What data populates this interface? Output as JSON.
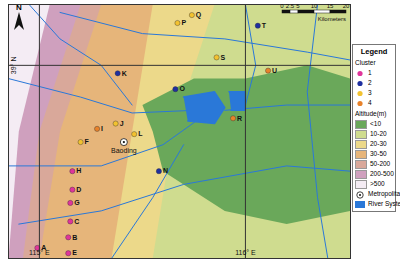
{
  "chart_data": {
    "type": "map",
    "xlim": [
      114.85,
      116.51
    ],
    "ylim": [
      38.27,
      39.23
    ],
    "xticks": [
      {
        "value": 115,
        "label": "115° E"
      },
      {
        "value": 116,
        "label": "116° E"
      }
    ],
    "yticks": [
      {
        "value": 39,
        "label": "39° N"
      }
    ],
    "legend": "right",
    "legend_title": "Legend",
    "cluster_title": "Cluster",
    "clusters": [
      {
        "name": "1",
        "color": "#e0359b"
      },
      {
        "name": "2",
        "color": "#1f2fa0"
      },
      {
        "name": "3",
        "color": "#f2c230"
      },
      {
        "name": "4",
        "color": "#e8822a"
      }
    ],
    "altitude_title": "Altitude(m)",
    "altitude_zones": [
      {
        "label": "<10",
        "color": "#6aa85a",
        "polygon": [
          [
            115.5,
            38.85
          ],
          [
            115.75,
            38.95
          ],
          [
            116.0,
            38.95
          ],
          [
            116.3,
            39.0
          ],
          [
            116.51,
            38.95
          ],
          [
            116.51,
            38.45
          ],
          [
            116.2,
            38.4
          ],
          [
            115.9,
            38.45
          ],
          [
            115.6,
            38.6
          ],
          [
            115.55,
            38.75
          ]
        ]
      },
      {
        "label": "10-20",
        "color": "#cfdc8f",
        "polygon": [
          [
            115.85,
            39.23
          ],
          [
            115.65,
            38.75
          ],
          [
            115.55,
            38.27
          ],
          [
            116.51,
            38.27
          ],
          [
            116.51,
            39.23
          ]
        ]
      },
      {
        "label": "20-30",
        "color": "#ecd98a",
        "polygon": [
          [
            115.55,
            39.23
          ],
          [
            115.45,
            38.75
          ],
          [
            115.35,
            38.27
          ],
          [
            116.51,
            38.27
          ],
          [
            116.51,
            39.23
          ]
        ]
      },
      {
        "label": "30-50",
        "color": "#e6b57a",
        "polygon": [
          [
            115.3,
            39.23
          ],
          [
            115.1,
            38.75
          ],
          [
            115.0,
            38.27
          ],
          [
            116.51,
            38.27
          ],
          [
            116.51,
            39.23
          ]
        ]
      },
      {
        "label": "50-200",
        "color": "#d9a89a",
        "polygon": [
          [
            115.2,
            39.23
          ],
          [
            115.0,
            38.75
          ],
          [
            114.92,
            38.27
          ],
          [
            116.51,
            38.27
          ],
          [
            116.51,
            39.23
          ]
        ]
      },
      {
        "label": "200-500",
        "color": "#cfa0be",
        "polygon": [
          [
            115.05,
            39.23
          ],
          [
            114.9,
            38.75
          ],
          [
            114.85,
            38.27
          ],
          [
            116.51,
            38.27
          ],
          [
            116.51,
            39.23
          ]
        ]
      },
      {
        "label": ">500",
        "color": "#f4ecf4",
        "polygon": [
          [
            114.85,
            39.23
          ],
          [
            116.51,
            39.23
          ],
          [
            116.51,
            38.27
          ],
          [
            114.85,
            38.27
          ]
        ]
      }
    ],
    "sites": [
      {
        "name": "A",
        "cluster": "1",
        "lon": 114.99,
        "lat": 38.31
      },
      {
        "name": "B",
        "cluster": "1",
        "lon": 115.14,
        "lat": 38.35
      },
      {
        "name": "C",
        "cluster": "1",
        "lon": 115.15,
        "lat": 38.41
      },
      {
        "name": "D",
        "cluster": "1",
        "lon": 115.16,
        "lat": 38.53
      },
      {
        "name": "E",
        "cluster": "1",
        "lon": 115.14,
        "lat": 38.29
      },
      {
        "name": "F",
        "cluster": "3",
        "lon": 115.2,
        "lat": 38.71
      },
      {
        "name": "G",
        "cluster": "1",
        "lon": 115.15,
        "lat": 38.48
      },
      {
        "name": "H",
        "cluster": "1",
        "lon": 115.16,
        "lat": 38.6
      },
      {
        "name": "I",
        "cluster": "4",
        "lon": 115.28,
        "lat": 38.76
      },
      {
        "name": "J",
        "cluster": "3",
        "lon": 115.37,
        "lat": 38.78
      },
      {
        "name": "K",
        "cluster": "2",
        "lon": 115.38,
        "lat": 38.97
      },
      {
        "name": "L",
        "cluster": "3",
        "lon": 115.46,
        "lat": 38.74
      },
      {
        "name": "N",
        "cluster": "2",
        "lon": 115.58,
        "lat": 38.6
      },
      {
        "name": "O",
        "cluster": "2",
        "lon": 115.66,
        "lat": 38.91
      },
      {
        "name": "P",
        "cluster": "3",
        "lon": 115.67,
        "lat": 39.16
      },
      {
        "name": "Q",
        "cluster": "3",
        "lon": 115.74,
        "lat": 39.19
      },
      {
        "name": "R",
        "cluster": "4",
        "lon": 115.94,
        "lat": 38.8
      },
      {
        "name": "S",
        "cluster": "3",
        "lon": 115.86,
        "lat": 39.03
      },
      {
        "name": "T",
        "cluster": "2",
        "lon": 116.06,
        "lat": 39.15
      },
      {
        "name": "U",
        "cluster": "4",
        "lon": 116.11,
        "lat": 38.98
      }
    ],
    "metropolitan": {
      "label": "Metropolitan",
      "name": "Baoding",
      "lon": 115.41,
      "lat": 38.71
    },
    "river_label": "River System",
    "river_color": "#2a78d8",
    "rivers": [
      [
        [
          114.85,
          38.95
        ],
        [
          115.2,
          38.88
        ],
        [
          115.45,
          38.82
        ],
        [
          115.75,
          38.83
        ]
      ],
      [
        [
          114.85,
          38.62
        ],
        [
          115.3,
          38.62
        ],
        [
          115.6,
          38.7
        ],
        [
          115.78,
          38.8
        ]
      ],
      [
        [
          114.9,
          38.4
        ],
        [
          115.3,
          38.45
        ],
        [
          115.7,
          38.55
        ],
        [
          116.2,
          38.62
        ],
        [
          116.51,
          38.6
        ]
      ],
      [
        [
          115.9,
          38.83
        ],
        [
          116.2,
          38.85
        ],
        [
          116.51,
          38.85
        ]
      ],
      [
        [
          115.1,
          39.2
        ],
        [
          115.5,
          39.12
        ],
        [
          115.9,
          39.1
        ],
        [
          116.3,
          39.05
        ],
        [
          116.51,
          39.02
        ]
      ],
      [
        [
          116.0,
          39.23
        ],
        [
          116.05,
          39.0
        ],
        [
          116.0,
          38.85
        ]
      ],
      [
        [
          116.35,
          39.23
        ],
        [
          116.3,
          38.9
        ],
        [
          116.35,
          38.5
        ],
        [
          116.4,
          38.27
        ]
      ],
      [
        [
          115.35,
          38.27
        ],
        [
          115.55,
          38.5
        ],
        [
          115.7,
          38.7
        ]
      ],
      [
        [
          114.95,
          39.23
        ],
        [
          115.1,
          39.1
        ],
        [
          115.3,
          39.0
        ],
        [
          115.45,
          38.85
        ]
      ]
    ],
    "lakes": [
      [
        [
          115.7,
          38.88
        ],
        [
          115.85,
          38.9
        ],
        [
          115.9,
          38.84
        ],
        [
          115.85,
          38.78
        ],
        [
          115.72,
          38.79
        ]
      ],
      [
        [
          115.92,
          38.9
        ],
        [
          116.0,
          38.9
        ],
        [
          116.0,
          38.83
        ],
        [
          115.93,
          38.83
        ]
      ]
    ],
    "scale_bar": {
      "unit": "Kilometers",
      "ticks": [
        0,
        2.5,
        5,
        10,
        15,
        20
      ]
    },
    "north": "N"
  }
}
